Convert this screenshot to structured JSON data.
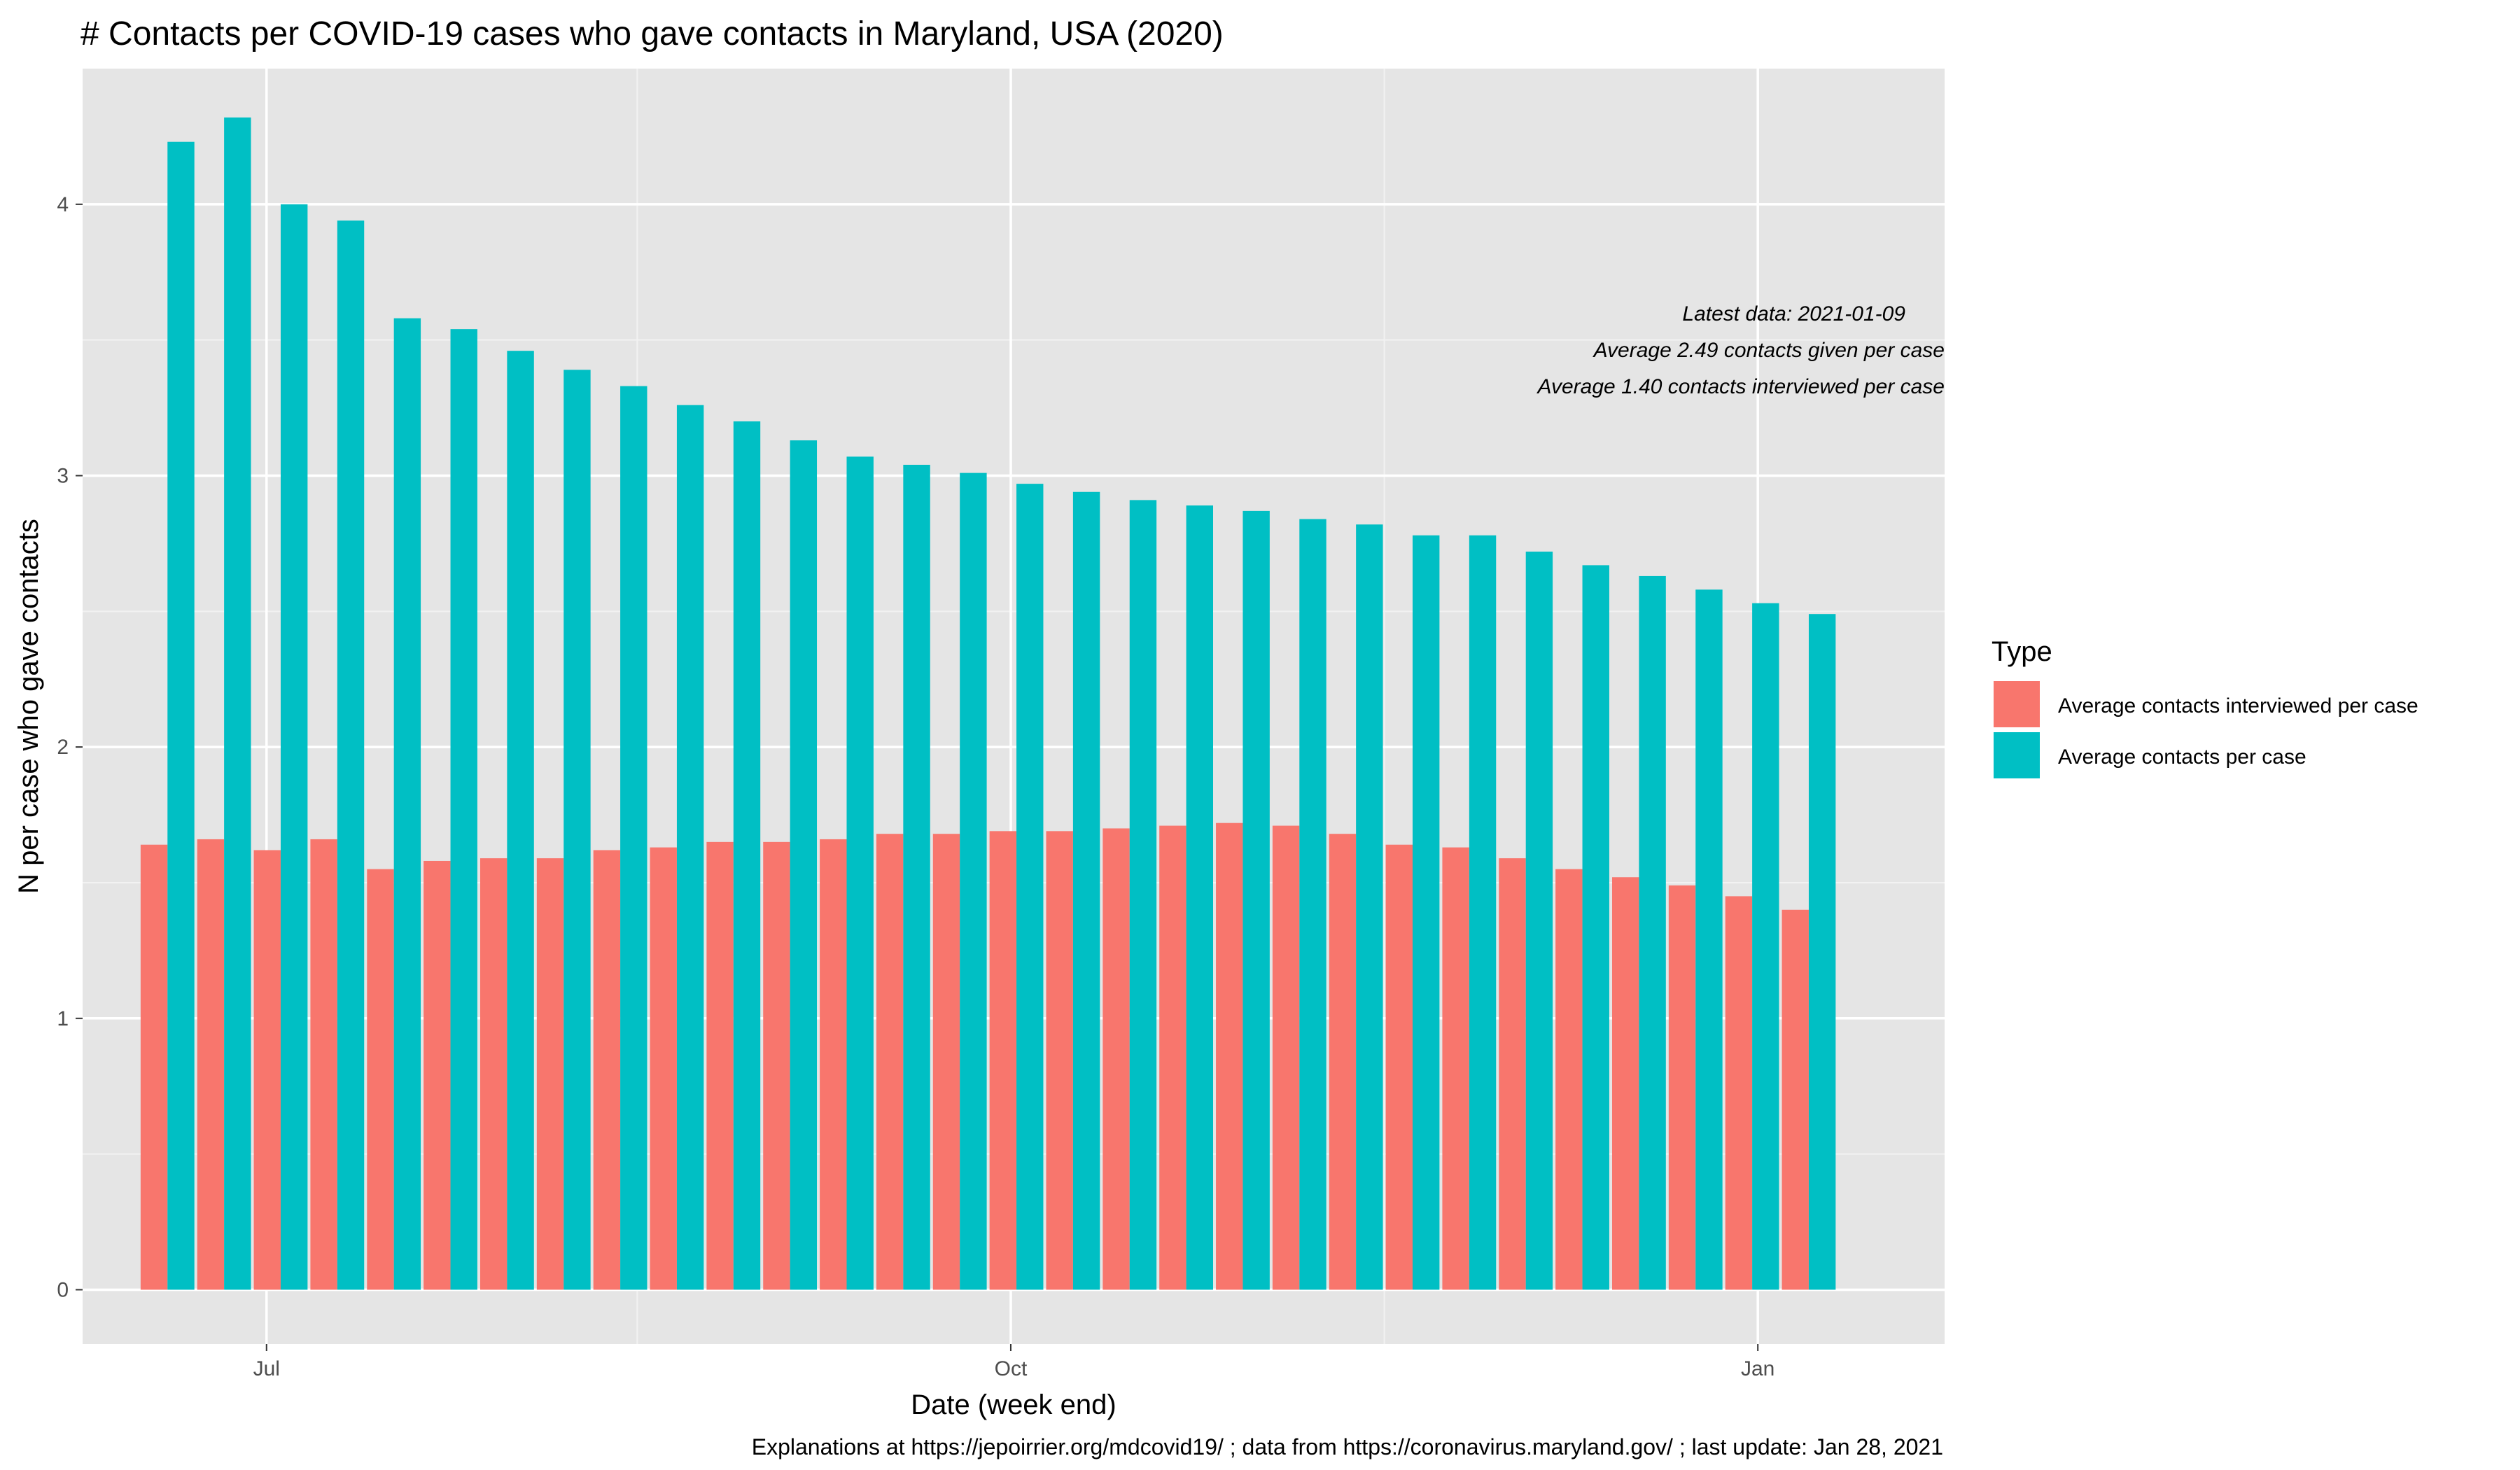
{
  "chart_data": {
    "type": "bar",
    "title": "# Contacts per COVID-19 cases who gave contacts in Maryland, USA (2020)",
    "xlabel": "Date (week end)",
    "ylabel": "N per case who gave contacts",
    "caption": "Explanations at https://jepoirrier.org/mdcovid19/ ; data from https://coronavirus.maryland.gov/ ; last update: Jan 28, 2021",
    "ylim": [
      -0.2,
      4.5
    ],
    "yticks": [
      0,
      1,
      2,
      3,
      4
    ],
    "ytick_labels": [
      "0",
      "1",
      "2",
      "3",
      "4"
    ],
    "x_tick_labels": [
      "Jul",
      "Oct",
      "Jan"
    ],
    "x_tick_week_index": [
      1.75,
      14.9,
      28.1
    ],
    "x_minor_week_index": [
      8.3,
      21.5
    ],
    "x_range_weeks": [
      -1.5,
      31.4
    ],
    "grid": true,
    "legend": {
      "title": "Type",
      "position": "right",
      "entries": [
        {
          "name": "Average contacts interviewed per case",
          "color": "#F8766D"
        },
        {
          "name": "Average contacts per case",
          "color": "#00BFC4"
        }
      ]
    },
    "annotations": [
      "Latest data: 2021-01-09",
      "Average 2.49 contacts given per case",
      "Average 1.40 contacts interviewed per case"
    ],
    "series": [
      {
        "name": "Average contacts interviewed per case",
        "color": "#F8766D",
        "values": [
          1.64,
          1.66,
          1.62,
          1.66,
          1.55,
          1.58,
          1.59,
          1.59,
          1.62,
          1.63,
          1.65,
          1.65,
          1.66,
          1.68,
          1.68,
          1.69,
          1.69,
          1.7,
          1.71,
          1.72,
          1.71,
          1.68,
          1.64,
          1.63,
          1.59,
          1.55,
          1.52,
          1.49,
          1.45,
          1.4
        ]
      },
      {
        "name": "Average contacts per case",
        "color": "#00BFC4",
        "values": [
          4.23,
          4.32,
          4.0,
          3.94,
          3.58,
          3.54,
          3.46,
          3.39,
          3.33,
          3.26,
          3.2,
          3.13,
          3.07,
          3.04,
          3.01,
          2.97,
          2.94,
          2.91,
          2.89,
          2.87,
          2.84,
          2.82,
          2.78,
          2.78,
          2.72,
          2.67,
          2.63,
          2.58,
          2.53,
          2.49
        ]
      }
    ]
  }
}
